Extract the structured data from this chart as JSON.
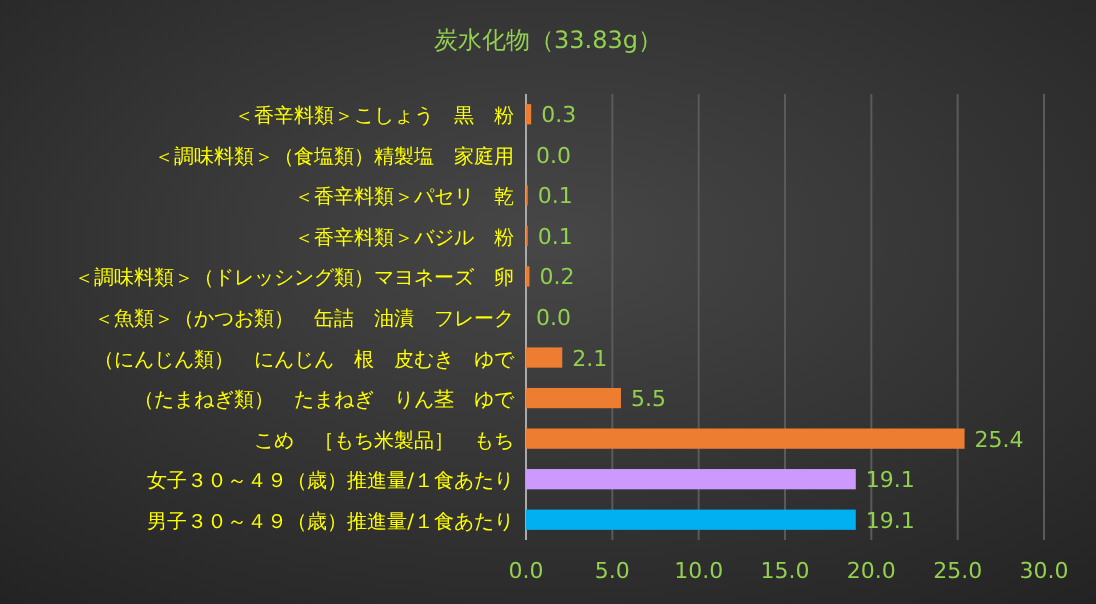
{
  "chart_data": {
    "type": "bar",
    "orientation": "horizontal",
    "title": "炭水化物（33.83g）",
    "categories": [
      "＜香辛料類＞こしょう　黒　粉",
      "＜調味料類＞（食塩類）精製塩　家庭用",
      "＜香辛料類＞パセリ　乾",
      "＜香辛料類＞バジル　粉",
      "＜調味料類＞（ドレッシング類）マヨネーズ　卵",
      "＜魚類＞（かつお類）　缶詰　油漬　フレーク",
      "（にんじん類）　にんじん　根　皮むき　ゆで",
      "（たまねぎ類）　たまねぎ　りん茎　ゆで",
      "こめ　［もち米製品］　もち",
      "女子３０～４９（歳）推進量/１食あたり",
      "男子３０～４９（歳）推進量/１食あたり"
    ],
    "values": [
      0.3,
      0.0,
      0.1,
      0.1,
      0.2,
      0.0,
      2.1,
      5.5,
      25.4,
      19.1,
      19.1
    ],
    "colors": [
      "#ed7d31",
      "#ed7d31",
      "#ed7d31",
      "#ed7d31",
      "#ed7d31",
      "#ed7d31",
      "#ed7d31",
      "#ed7d31",
      "#ed7d31",
      "#cc99ff",
      "#00b0f0"
    ],
    "xlim": [
      0,
      30
    ],
    "xticks": [
      {
        "value": 0,
        "label": "0.0"
      },
      {
        "value": 5,
        "label": "5.0"
      },
      {
        "value": 10,
        "label": "10.0"
      },
      {
        "value": 15,
        "label": "15.0"
      },
      {
        "value": 20,
        "label": "20.0"
      },
      {
        "value": 25,
        "label": "25.0"
      },
      {
        "value": 30,
        "label": "30.0"
      }
    ],
    "value_labels": [
      "0.3",
      "0.0",
      "0.1",
      "0.1",
      "0.2",
      "0.0",
      "2.1",
      "5.5",
      "25.4",
      "19.1",
      "19.1"
    ],
    "grid": "x"
  }
}
